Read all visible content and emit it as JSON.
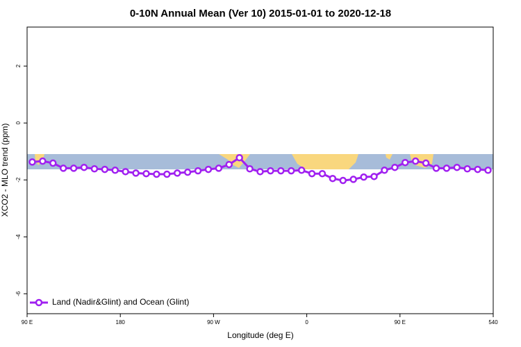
{
  "chart_data": {
    "type": "line",
    "title": "0-10N Annual Mean (Ver 10)   2015-01-01 to 2020-12-18",
    "x_label": "Longitude (deg E)",
    "y_label": "XCO2 - MLO trend (ppm)",
    "x": [
      95,
      105,
      115,
      125,
      135,
      145,
      155,
      165,
      175,
      185,
      195,
      205,
      215,
      225,
      235,
      245,
      255,
      265,
      275,
      285,
      295,
      305,
      315,
      325,
      335,
      345,
      355,
      365,
      375,
      385,
      395,
      405,
      415,
      425,
      435,
      445,
      455,
      465,
      475,
      485,
      495,
      505,
      515,
      525,
      535
    ],
    "series": [
      {
        "name": "Land (Nadir&Glint) and Ocean (Glint)",
        "color": "#a020f0",
        "values": [
          -1.37,
          -1.34,
          -1.41,
          -1.59,
          -1.59,
          -1.56,
          -1.61,
          -1.63,
          -1.66,
          -1.71,
          -1.76,
          -1.78,
          -1.8,
          -1.8,
          -1.76,
          -1.73,
          -1.68,
          -1.63,
          -1.59,
          -1.46,
          -1.22,
          -1.61,
          -1.71,
          -1.68,
          -1.68,
          -1.68,
          -1.66,
          -1.78,
          -1.78,
          -1.95,
          -2.02,
          -1.98,
          -1.9,
          -1.88,
          -1.66,
          -1.56,
          -1.39,
          -1.34,
          -1.41,
          -1.59,
          -1.59,
          -1.56,
          -1.61,
          -1.63,
          -1.66
        ]
      }
    ],
    "xlim": [
      90,
      540
    ],
    "xticks": [
      {
        "value": 90,
        "label": "90 E"
      },
      180,
      {
        "value": 270,
        "label": "90 W"
      },
      {
        "value": 360,
        "label": "0"
      },
      {
        "value": 450,
        "label": "90 E"
      },
      540
    ],
    "ylim": [
      -6.7,
      3.37
    ],
    "yticks": [
      2,
      0,
      -2,
      -4,
      -6
    ],
    "legend": "bottom-left"
  }
}
